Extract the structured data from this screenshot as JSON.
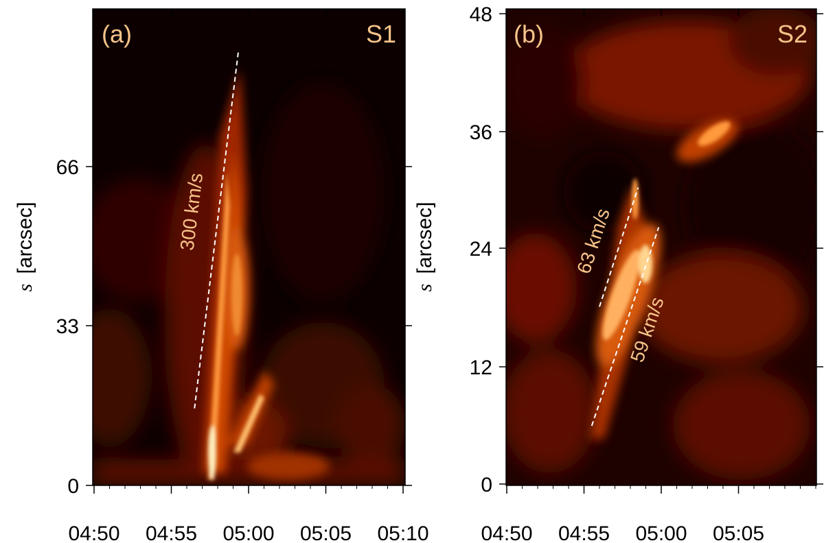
{
  "chart_data": [
    {
      "type": "heatmap",
      "panel_label": "(a)",
      "series_label": "S1",
      "ylabel_symbol": "s",
      "ylabel_unit": "[arcsec]",
      "x_ticks": [
        "04:50",
        "04:55",
        "05:00",
        "05:05",
        "05:10"
      ],
      "y_ticks": [
        "0",
        "33",
        "66"
      ],
      "ylim": [
        0,
        99
      ],
      "annotations": [
        {
          "text": "300 km/s",
          "line": {
            "x0": "04:56:30",
            "y0": 16,
            "x1": "04:59:20",
            "y1": 90
          }
        }
      ],
      "colormap": [
        "#000000",
        "#3b0000",
        "#8a1a00",
        "#d95a00",
        "#ff9a3c",
        "#fff0c0"
      ]
    },
    {
      "type": "heatmap",
      "panel_label": "(b)",
      "series_label": "S2",
      "ylabel_symbol": "s",
      "ylabel_unit": "[arcsec]",
      "x_ticks": [
        "04:50",
        "04:55",
        "05:00",
        "05:05"
      ],
      "y_ticks": [
        "0",
        "12",
        "24",
        "36",
        "48"
      ],
      "ylim": [
        0,
        48
      ],
      "annotations": [
        {
          "text": "63 km/s",
          "line": {
            "x0": "04:56:00",
            "y0": 18,
            "x1": "04:58:30",
            "y1": 30
          }
        },
        {
          "text": "59 km/s",
          "line": {
            "x0": "04:55:30",
            "y0": 6,
            "x1": "04:59:50",
            "y1": 26
          }
        }
      ],
      "colormap": [
        "#000000",
        "#3b0000",
        "#8a1a00",
        "#d95a00",
        "#ff9a3c",
        "#fff0c0"
      ]
    }
  ]
}
